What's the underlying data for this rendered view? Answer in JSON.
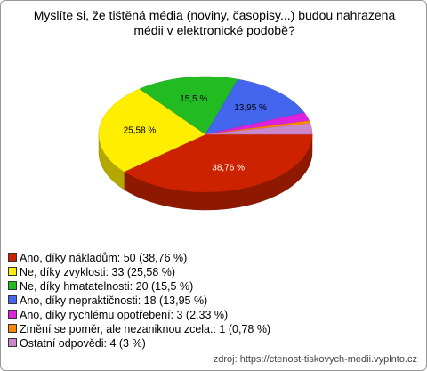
{
  "chart_data": {
    "type": "pie3d",
    "title": "Myslíte si, že tištěná média (noviny, časopisy...) budou nahrazena médii v elektronické podobě?",
    "categories": [
      "Ano, díky nákladům: 50 (38,76 %)",
      "Ne, díky zvyklosti: 33 (25,58 %)",
      "Ne, díky hmatatelnosti: 20 (15,5 %)",
      "Ano, díky nepraktičnosti: 18 (13,95 %)",
      "Ano, díky rychlému opotřebení: 3 (2,33 %)",
      "Změní se poměr, ale nezaniknou zcela.: 1 (0,78 %)",
      "Ostatní odpovědi: 4 (3 %)"
    ],
    "values": [
      38.76,
      25.58,
      15.5,
      13.95,
      2.33,
      0.78,
      3
    ],
    "value_labels": [
      "38,76 %",
      "25,58 %",
      "15,5 %",
      "13,95 %",
      null,
      null,
      null
    ],
    "colors": [
      "#cc2200",
      "#ffee00",
      "#22bb22",
      "#4466ee",
      "#dd22dd",
      "#ff8800",
      "#cc88cc"
    ],
    "source": "zdroj: https://ctenost-tiskovych-medii.vyplnto.cz"
  }
}
